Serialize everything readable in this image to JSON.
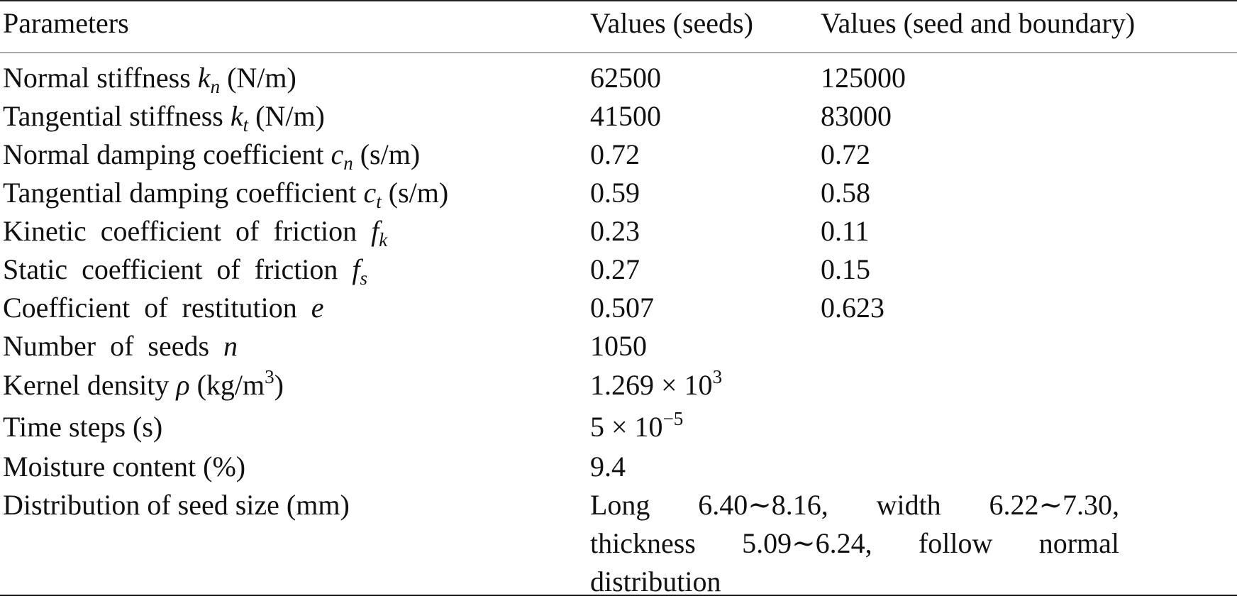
{
  "table": {
    "headers": [
      "Parameters",
      "Values (seeds)",
      "Values (seed and boundary)"
    ],
    "rows": [
      {
        "param": "Normal stiffness",
        "symbol": "k",
        "sub": "n",
        "unit": "(N/m)",
        "seeds": "62500",
        "boundary": "125000"
      },
      {
        "param": "Tangential stiffness",
        "symbol": "k",
        "sub": "t",
        "unit": "(N/m)",
        "seeds": "41500",
        "boundary": "83000"
      },
      {
        "param": "Normal damping coefficient",
        "symbol": "c",
        "sub": "n",
        "unit": "(s/m)",
        "seeds": "0.72",
        "boundary": "0.72"
      },
      {
        "param": "Tangential damping coefficient",
        "symbol": "c",
        "sub": "t",
        "unit": "(s/m)",
        "seeds": "0.59",
        "boundary": "0.58"
      },
      {
        "param": "Kinetic coefficient of friction",
        "symbol": "f",
        "sub": "k",
        "seeds": "0.23",
        "boundary": "0.11"
      },
      {
        "param": "Static coefficient of friction",
        "symbol": "f",
        "sub": "s",
        "seeds": "0.27",
        "boundary": "0.15"
      },
      {
        "param": "Coefficient of restitution",
        "symbol": "e",
        "seeds": "0.507",
        "boundary": "0.623"
      },
      {
        "param": "Number of seeds",
        "symbol": "n",
        "seeds": "1050"
      },
      {
        "param": "Kernel density",
        "symbol": "ρ",
        "unit_pre": "(kg/m",
        "unit_sup": "3",
        "unit_post": ")",
        "seeds_base": "1.269 × 10",
        "seeds_exp": "3"
      },
      {
        "param": "Time steps (s)",
        "seeds_base": "5 × 10",
        "seeds_exp": "−5"
      },
      {
        "param": "Moisture content (%)",
        "seeds": "9.4"
      },
      {
        "param": "Distribution of seed size (mm)",
        "seeds_lines": [
          "Long 6.40∼8.16, width 6.22∼7.30,",
          "thickness 5.09∼6.24, follow normal",
          "distribution"
        ]
      }
    ]
  }
}
